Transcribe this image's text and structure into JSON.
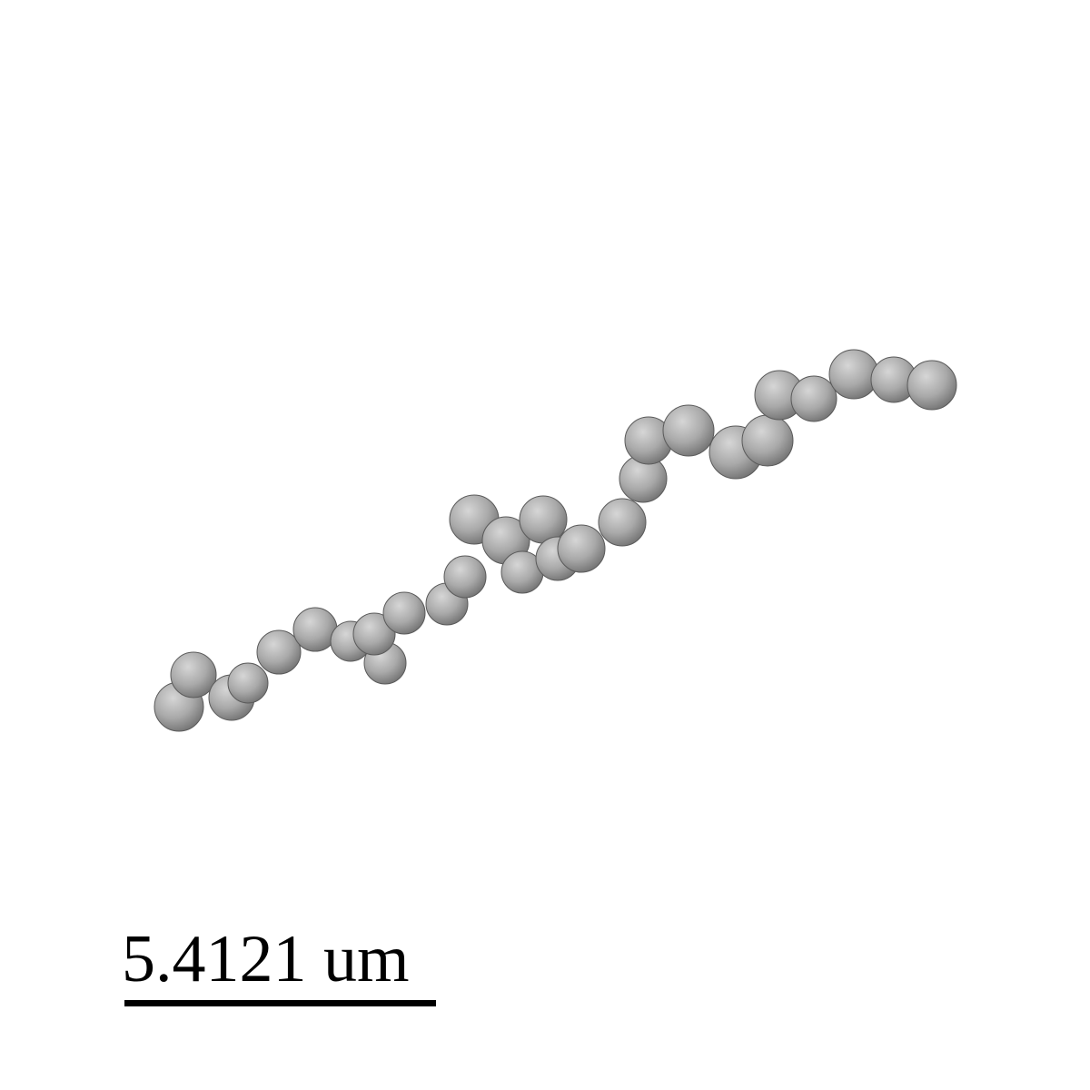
{
  "scale_bar": {
    "label": "5.4121 um"
  },
  "colors": {
    "background": "#ffffff",
    "bead_fill": "#a9a9a9",
    "bead_highlight": "#d6d6d6",
    "bead_shadow": "#5a5a5a",
    "scale_bar": "#000000"
  }
}
